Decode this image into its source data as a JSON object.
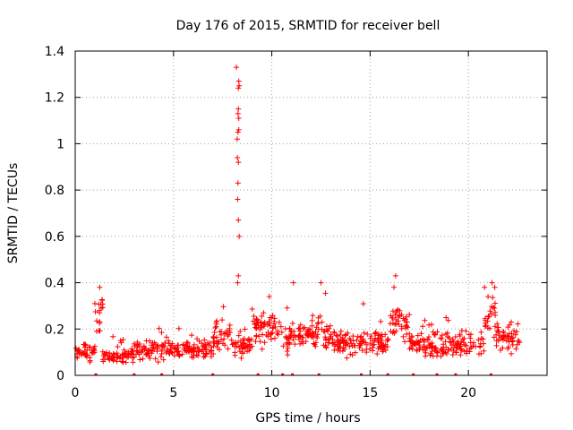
{
  "chart_data": {
    "type": "scatter",
    "title": "Day 176 of 2015, SRMTID for receiver bell",
    "xlabel": "GPS time / hours",
    "ylabel": "SRMTID / TECUs",
    "xlim": [
      0,
      24
    ],
    "ylim": [
      0,
      1.4
    ],
    "xticks": [
      0,
      5,
      10,
      15,
      20
    ],
    "yticks": [
      0,
      0.2,
      0.4,
      0.6,
      0.8,
      1,
      1.2,
      1.4
    ],
    "xtick_labels": [
      "0",
      "5",
      "10",
      "15",
      "20"
    ],
    "ytick_labels": [
      "0",
      "0.2",
      "0.4",
      "0.6",
      "0.8",
      "1",
      "1.2",
      "1.4"
    ],
    "grid": true,
    "series_color": "#ff0000",
    "marker": "plus",
    "baseline_segments": [
      {
        "start": 0.0,
        "end": 1.0,
        "level": 0.1
      },
      {
        "start": 1.0,
        "end": 1.4,
        "level": 0.27
      },
      {
        "start": 1.4,
        "end": 3.0,
        "level": 0.08
      },
      {
        "start": 3.0,
        "end": 7.0,
        "level": 0.11
      },
      {
        "start": 7.0,
        "end": 8.0,
        "level": 0.17
      },
      {
        "start": 8.0,
        "end": 9.0,
        "level": 0.13
      },
      {
        "start": 9.0,
        "end": 10.5,
        "level": 0.2
      },
      {
        "start": 10.5,
        "end": 13.0,
        "level": 0.17
      },
      {
        "start": 13.0,
        "end": 16.0,
        "level": 0.14
      },
      {
        "start": 16.0,
        "end": 17.0,
        "level": 0.22
      },
      {
        "start": 17.0,
        "end": 20.8,
        "level": 0.13
      },
      {
        "start": 20.8,
        "end": 21.4,
        "level": 0.26
      },
      {
        "start": 21.4,
        "end": 22.6,
        "level": 0.16
      }
    ],
    "spike_points": [
      {
        "x": 8.2,
        "y": 1.33
      },
      {
        "x": 8.32,
        "y": 1.27
      },
      {
        "x": 8.34,
        "y": 1.25
      },
      {
        "x": 8.3,
        "y": 1.24
      },
      {
        "x": 8.3,
        "y": 1.15
      },
      {
        "x": 8.28,
        "y": 1.13
      },
      {
        "x": 8.32,
        "y": 1.11
      },
      {
        "x": 8.32,
        "y": 1.06
      },
      {
        "x": 8.28,
        "y": 1.05
      },
      {
        "x": 8.24,
        "y": 1.02
      },
      {
        "x": 8.25,
        "y": 0.94
      },
      {
        "x": 8.3,
        "y": 0.92
      },
      {
        "x": 8.28,
        "y": 0.83
      },
      {
        "x": 8.26,
        "y": 0.76
      },
      {
        "x": 8.3,
        "y": 0.67
      },
      {
        "x": 8.34,
        "y": 0.6
      },
      {
        "x": 8.3,
        "y": 0.43
      },
      {
        "x": 8.26,
        "y": 0.4
      },
      {
        "x": 11.1,
        "y": 0.4
      },
      {
        "x": 12.5,
        "y": 0.4
      },
      {
        "x": 16.3,
        "y": 0.43
      },
      {
        "x": 21.2,
        "y": 0.4
      },
      {
        "x": 1.0,
        "y": 0.31
      }
    ],
    "data_gaps_x": [
      1.05,
      3.0,
      4.4,
      7.0,
      9.3,
      10.55,
      11.05,
      12.4,
      14.55,
      15.9,
      17.2,
      18.4,
      19.35,
      21.15
    ]
  }
}
